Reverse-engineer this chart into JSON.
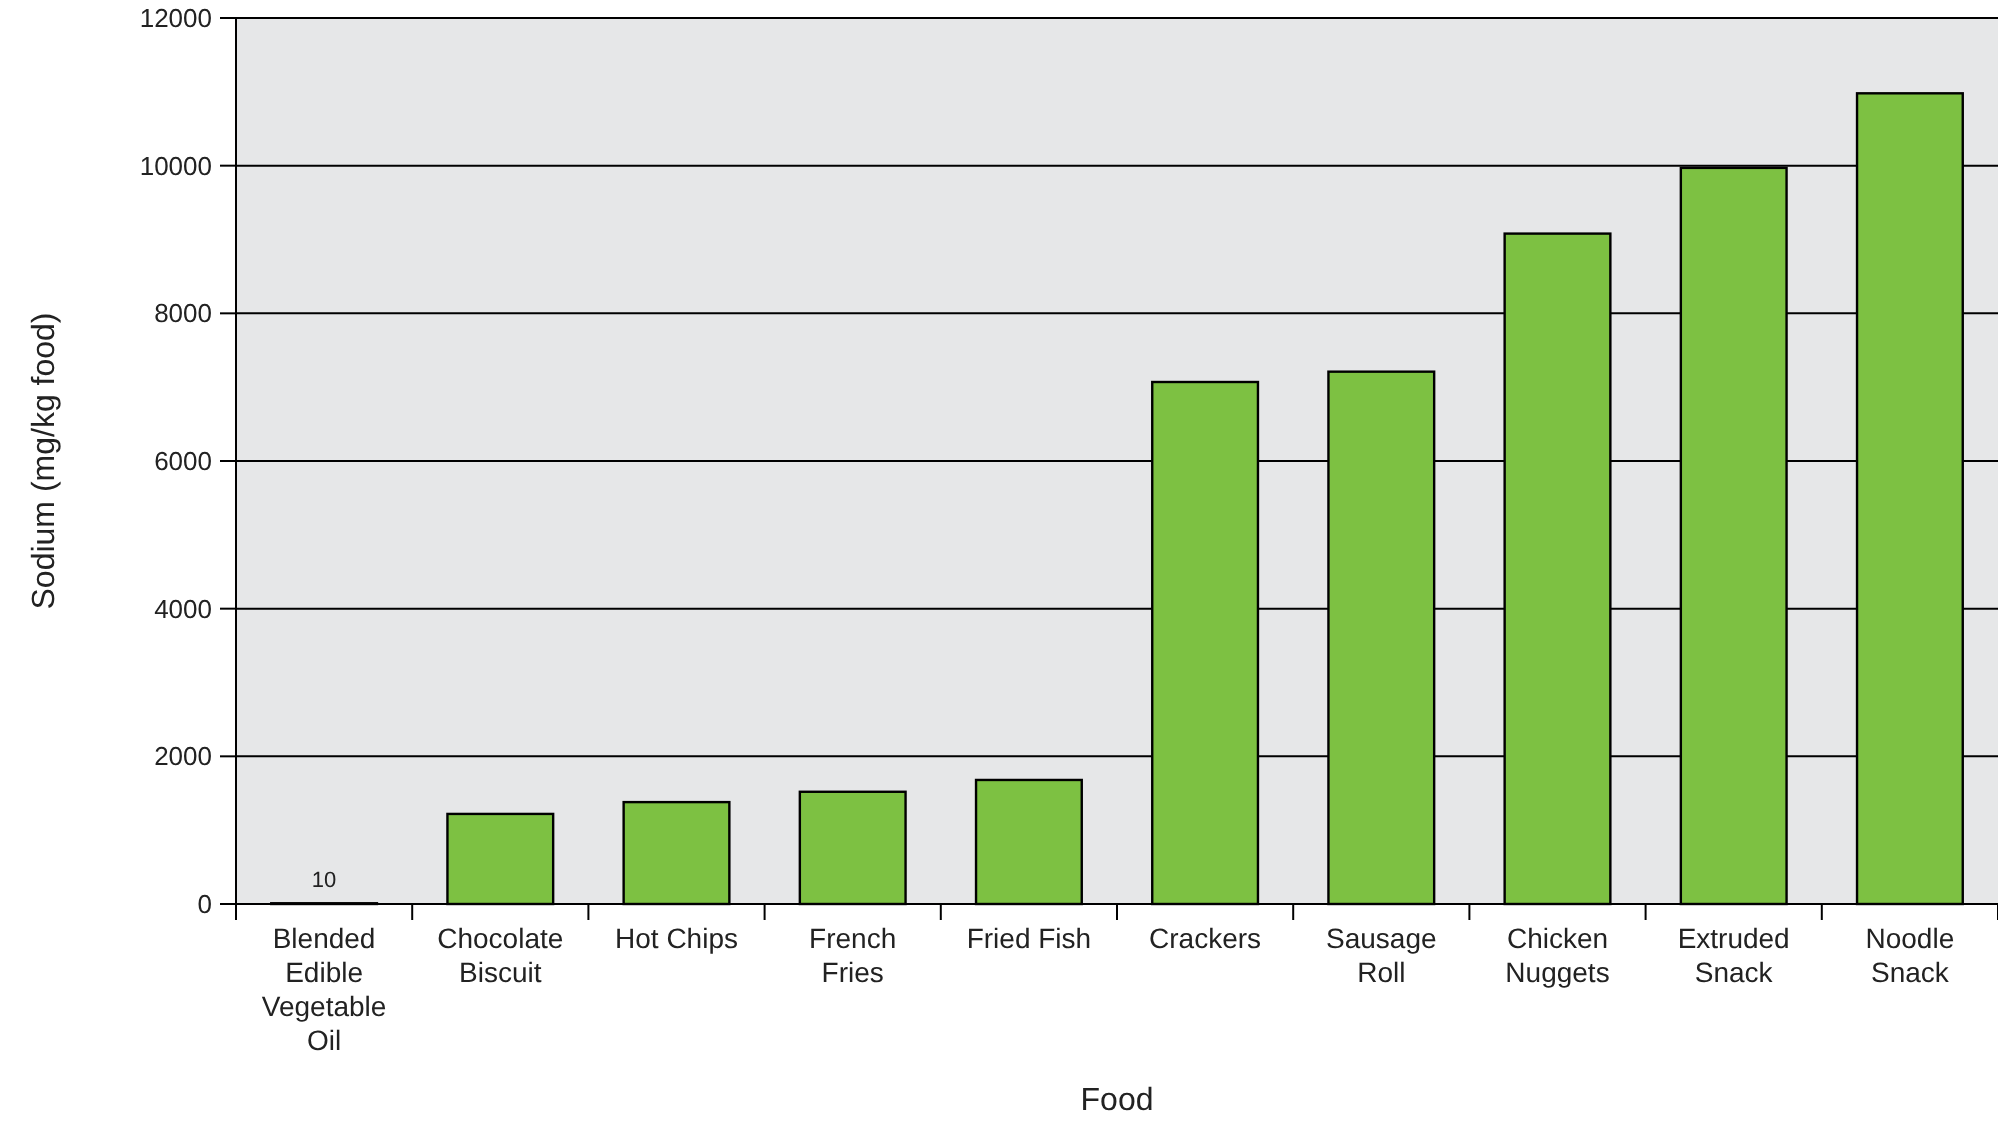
{
  "chart_data": {
    "type": "bar",
    "xlabel": "Food",
    "ylabel": "Sodium (mg/kg food)",
    "categories": [
      "Blended Edible Vegetable Oil",
      "Chocolate Biscuit",
      "Hot Chips",
      "French Fries",
      "Fried Fish",
      "Crackers",
      "Sausage Roll",
      "Chicken Nuggets",
      "Extruded Snack",
      "Noodle Snack"
    ],
    "values": [
      10,
      1220,
      1380,
      1520,
      1680,
      7070,
      7210,
      9080,
      9970,
      10980
    ],
    "value_labels": [
      "10",
      null,
      null,
      null,
      null,
      null,
      null,
      null,
      null,
      null
    ],
    "color": "#7dc142",
    "ylim": [
      0,
      12000
    ],
    "yticks": [
      0,
      2000,
      4000,
      6000,
      8000,
      10000,
      12000
    ],
    "grid": "y"
  }
}
